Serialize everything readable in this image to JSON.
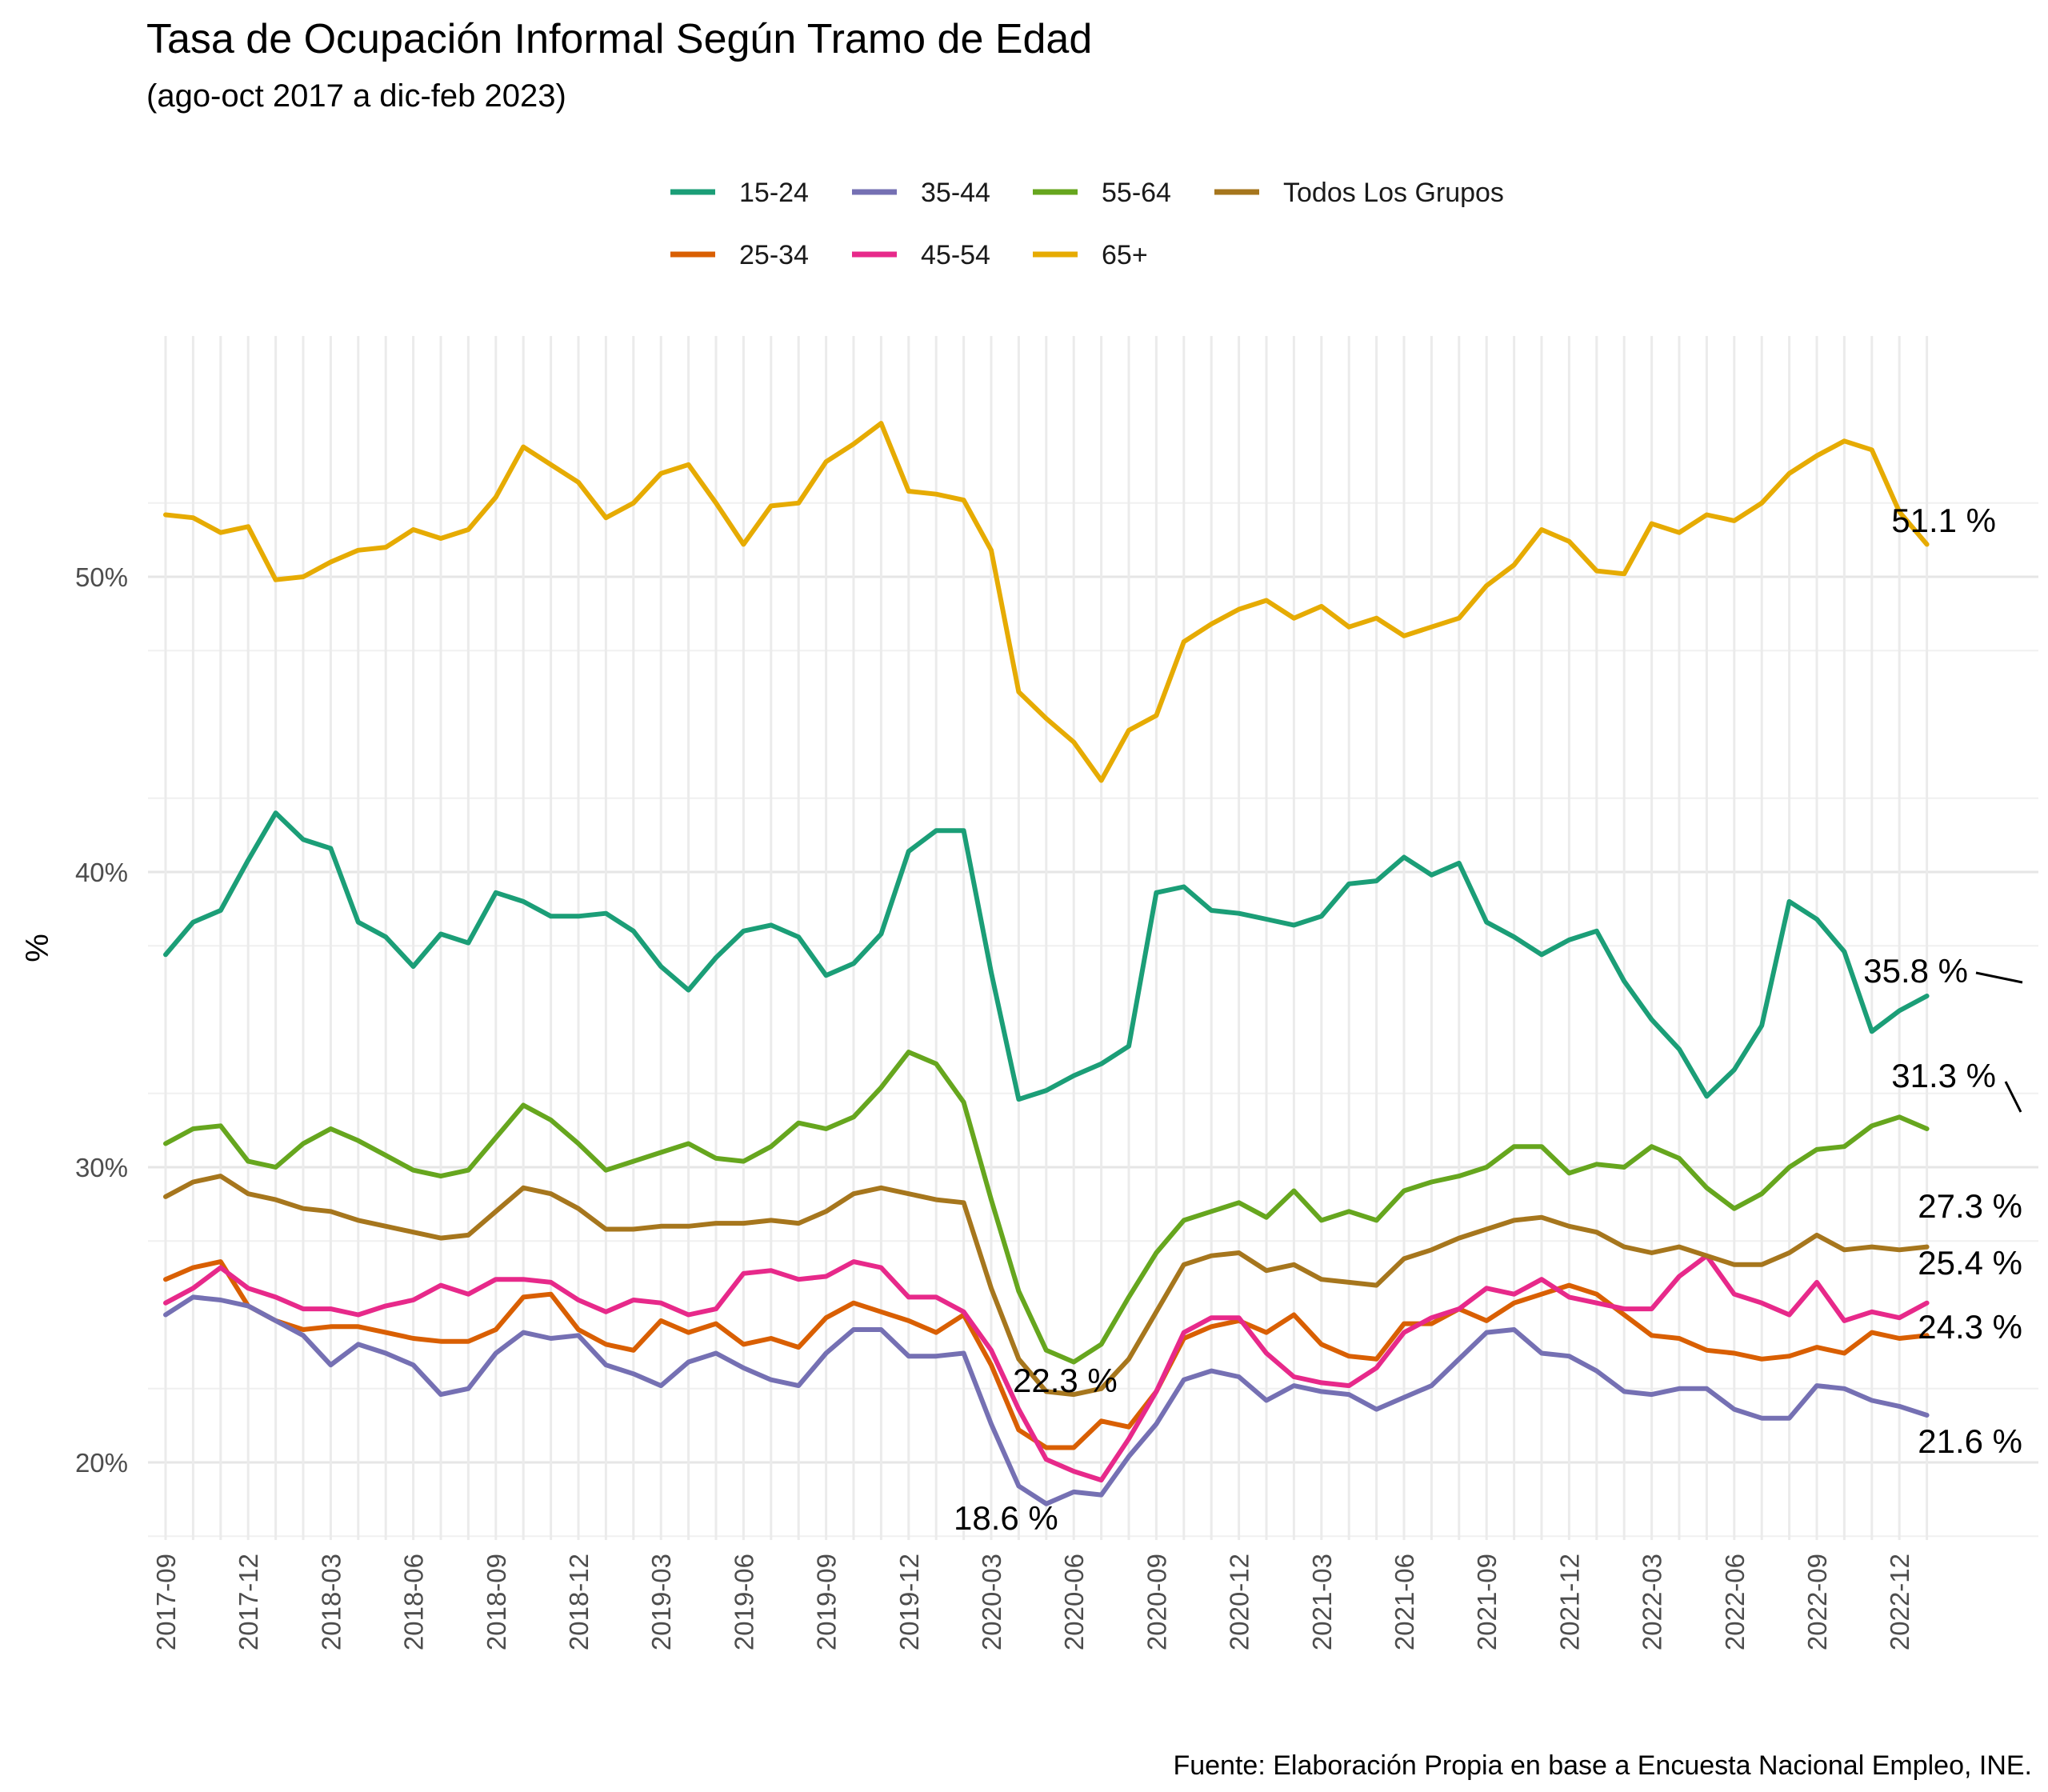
{
  "chart_data": {
    "type": "line",
    "title": "Tasa de Ocupación Informal Según Tramo de Edad",
    "subtitle": "(ago-oct 2017 a dic-feb 2023)",
    "ylabel": "%",
    "xlabel": "",
    "caption": "Fuente: Elaboración Propia en base a Encuesta Nacional Empleo, INE.",
    "legend_position": "top",
    "grid": true,
    "ylim": [
      17,
      56
    ],
    "y_ticks": [
      20,
      30,
      40,
      50
    ],
    "y_tick_labels": [
      "20%",
      "30%",
      "40%",
      "50%"
    ],
    "x_tick_labels": [
      "2017-09",
      "2017-12",
      "2018-03",
      "2018-06",
      "2018-09",
      "2018-12",
      "2019-03",
      "2019-06",
      "2019-09",
      "2019-12",
      "2020-03",
      "2020-06",
      "2020-09",
      "2020-12",
      "2021-03",
      "2021-06",
      "2021-09",
      "2021-12",
      "2022-03",
      "2022-06",
      "2022-09",
      "2022-12"
    ],
    "x_start": "2017-09",
    "x": [
      "2017-09",
      "2017-10",
      "2017-11",
      "2017-12",
      "2018-01",
      "2018-02",
      "2018-03",
      "2018-04",
      "2018-05",
      "2018-06",
      "2018-07",
      "2018-08",
      "2018-09",
      "2018-10",
      "2018-11",
      "2018-12",
      "2019-01",
      "2019-02",
      "2019-03",
      "2019-04",
      "2019-05",
      "2019-06",
      "2019-07",
      "2019-08",
      "2019-09",
      "2019-10",
      "2019-11",
      "2019-12",
      "2020-01",
      "2020-02",
      "2020-03",
      "2020-04",
      "2020-05",
      "2020-06",
      "2020-07",
      "2020-08",
      "2020-09",
      "2020-10",
      "2020-11",
      "2020-12",
      "2021-01",
      "2021-02",
      "2021-03",
      "2021-04",
      "2021-05",
      "2021-06",
      "2021-07",
      "2021-08",
      "2021-09",
      "2021-10",
      "2021-11",
      "2021-12",
      "2022-01",
      "2022-02",
      "2022-03",
      "2022-04",
      "2022-05",
      "2022-06",
      "2022-07",
      "2022-08",
      "2022-09",
      "2022-10",
      "2022-11",
      "2022-12",
      "2023-01"
    ],
    "series": [
      {
        "name": "15-24",
        "color": "#1B9E77",
        "values": [
          37.2,
          38.3,
          38.7,
          40.4,
          42.0,
          41.1,
          40.8,
          38.3,
          37.8,
          36.8,
          37.9,
          37.6,
          39.3,
          39.0,
          38.5,
          38.5,
          38.6,
          38.0,
          36.8,
          36.0,
          37.1,
          38.0,
          38.2,
          37.8,
          36.5,
          36.9,
          37.9,
          40.7,
          41.4,
          41.4,
          36.6,
          32.3,
          32.6,
          33.1,
          33.5,
          34.1,
          39.3,
          39.5,
          38.7,
          38.6,
          38.4,
          38.2,
          38.5,
          39.6,
          39.7,
          40.5,
          39.9,
          40.3,
          38.3,
          37.8,
          37.2,
          37.7,
          38.0,
          36.3,
          35.0,
          34.0,
          32.4,
          33.3,
          34.8,
          39.0,
          38.4,
          37.3,
          34.6,
          35.3,
          35.8
        ]
      },
      {
        "name": "25-34",
        "color": "#D95F02",
        "values": [
          26.2,
          26.6,
          26.8,
          25.3,
          24.8,
          24.5,
          24.6,
          24.6,
          24.4,
          24.2,
          24.1,
          24.1,
          24.5,
          25.6,
          25.7,
          24.5,
          24.0,
          23.8,
          24.8,
          24.4,
          24.7,
          24.0,
          24.2,
          23.9,
          24.9,
          25.4,
          25.1,
          24.8,
          24.4,
          25.0,
          23.3,
          21.1,
          20.5,
          20.5,
          21.4,
          21.2,
          22.4,
          24.2,
          24.6,
          24.8,
          24.4,
          25.0,
          24.0,
          23.6,
          23.5,
          24.7,
          24.7,
          25.2,
          24.8,
          25.4,
          25.7,
          26.0,
          25.7,
          25.0,
          24.3,
          24.2,
          23.8,
          23.7,
          23.5,
          23.6,
          23.9,
          23.7,
          24.4,
          24.2,
          24.3
        ]
      },
      {
        "name": "35-44",
        "color": "#7570B3",
        "values": [
          25.0,
          25.6,
          25.5,
          25.3,
          24.8,
          24.3,
          23.3,
          24.0,
          23.7,
          23.3,
          22.3,
          22.5,
          23.7,
          24.4,
          24.2,
          24.3,
          23.3,
          23.0,
          22.6,
          23.4,
          23.7,
          23.2,
          22.8,
          22.6,
          23.7,
          24.5,
          24.5,
          23.6,
          23.6,
          23.7,
          21.3,
          19.2,
          18.6,
          19.0,
          18.9,
          20.2,
          21.3,
          22.8,
          23.1,
          22.9,
          22.1,
          22.6,
          22.4,
          22.3,
          21.8,
          22.2,
          22.6,
          23.5,
          24.4,
          24.5,
          23.7,
          23.6,
          23.1,
          22.4,
          22.3,
          22.5,
          22.5,
          21.8,
          21.5,
          21.5,
          22.6,
          22.5,
          22.1,
          21.9,
          21.6
        ]
      },
      {
        "name": "45-54",
        "color": "#E7298A",
        "values": [
          25.4,
          25.9,
          26.6,
          25.9,
          25.6,
          25.2,
          25.2,
          25.0,
          25.3,
          25.5,
          26.0,
          25.7,
          26.2,
          26.2,
          26.1,
          25.5,
          25.1,
          25.5,
          25.4,
          25.0,
          25.2,
          26.4,
          26.5,
          26.2,
          26.3,
          26.8,
          26.6,
          25.6,
          25.6,
          25.1,
          23.8,
          21.8,
          20.1,
          19.7,
          19.4,
          20.8,
          22.4,
          24.4,
          24.9,
          24.9,
          23.7,
          22.9,
          22.7,
          22.6,
          23.2,
          24.4,
          24.9,
          25.2,
          25.9,
          25.7,
          26.2,
          25.6,
          25.4,
          25.2,
          25.2,
          26.3,
          27.0,
          25.7,
          25.4,
          25.0,
          26.1,
          24.8,
          25.1,
          24.9,
          25.4
        ]
      },
      {
        "name": "55-64",
        "color": "#66A61E",
        "values": [
          30.8,
          31.3,
          31.4,
          30.2,
          30.0,
          30.8,
          31.3,
          30.9,
          30.4,
          29.9,
          29.7,
          29.9,
          31.0,
          32.1,
          31.6,
          30.8,
          29.9,
          30.2,
          30.5,
          30.8,
          30.3,
          30.2,
          30.7,
          31.5,
          31.3,
          31.7,
          32.7,
          33.9,
          33.5,
          32.2,
          28.9,
          25.8,
          23.8,
          23.4,
          24.0,
          25.6,
          27.1,
          28.2,
          28.5,
          28.8,
          28.3,
          29.2,
          28.2,
          28.5,
          28.2,
          29.2,
          29.5,
          29.7,
          30.0,
          30.7,
          30.7,
          29.8,
          30.1,
          30.0,
          30.7,
          30.3,
          29.3,
          28.6,
          29.1,
          30.0,
          30.6,
          30.7,
          31.4,
          31.7,
          31.3
        ]
      },
      {
        "name": "65+",
        "color": "#E6AB02",
        "values": [
          52.1,
          52.0,
          51.5,
          51.7,
          49.9,
          50.0,
          50.5,
          50.9,
          51.0,
          51.6,
          51.3,
          51.6,
          52.7,
          54.4,
          53.8,
          53.2,
          52.0,
          52.5,
          53.5,
          53.8,
          52.5,
          51.1,
          52.4,
          52.5,
          53.9,
          54.5,
          55.2,
          52.9,
          52.8,
          52.6,
          50.9,
          46.1,
          45.2,
          44.4,
          43.1,
          44.8,
          45.3,
          47.8,
          48.4,
          48.9,
          49.2,
          48.6,
          49.0,
          48.3,
          48.6,
          48.0,
          48.3,
          48.6,
          49.7,
          50.4,
          51.6,
          51.2,
          50.2,
          50.1,
          51.8,
          51.5,
          52.1,
          51.9,
          52.5,
          53.5,
          54.1,
          54.6,
          54.3,
          52.2,
          51.1
        ]
      },
      {
        "name": "Todos Los Grupos",
        "color": "#A6761D",
        "values": [
          29.0,
          29.5,
          29.7,
          29.1,
          28.9,
          28.6,
          28.5,
          28.2,
          28.0,
          27.8,
          27.6,
          27.7,
          28.5,
          29.3,
          29.1,
          28.6,
          27.9,
          27.9,
          28.0,
          28.0,
          28.1,
          28.1,
          28.2,
          28.1,
          28.5,
          29.1,
          29.3,
          29.1,
          28.9,
          28.8,
          25.9,
          23.5,
          22.4,
          22.3,
          22.5,
          23.5,
          25.1,
          26.7,
          27.0,
          27.1,
          26.5,
          26.7,
          26.2,
          26.1,
          26.0,
          26.9,
          27.2,
          27.6,
          27.9,
          28.2,
          28.3,
          28.0,
          27.8,
          27.3,
          27.1,
          27.3,
          27.0,
          26.7,
          26.7,
          27.1,
          27.7,
          27.2,
          27.3,
          27.2,
          27.3
        ]
      }
    ],
    "annotations": [
      {
        "text": "51.1 %",
        "series": "65+",
        "value": 51.1
      },
      {
        "text": "35.8 %",
        "series": "15-24",
        "value": 35.8
      },
      {
        "text": "31.3 %",
        "series": "55-64",
        "value": 31.3
      },
      {
        "text": "27.3 %",
        "series": "Todos Los Grupos",
        "value": 27.3
      },
      {
        "text": "25.4 %",
        "series": "45-54",
        "value": 25.4
      },
      {
        "text": "24.3 %",
        "series": "25-34",
        "value": 24.3
      },
      {
        "text": "21.6 %",
        "series": "35-44",
        "value": 21.6
      },
      {
        "text": "22.3 %",
        "series": "Todos Los Grupos",
        "value": 22.3
      },
      {
        "text": "18.6 %",
        "series": "35-44",
        "value": 18.6
      }
    ]
  }
}
